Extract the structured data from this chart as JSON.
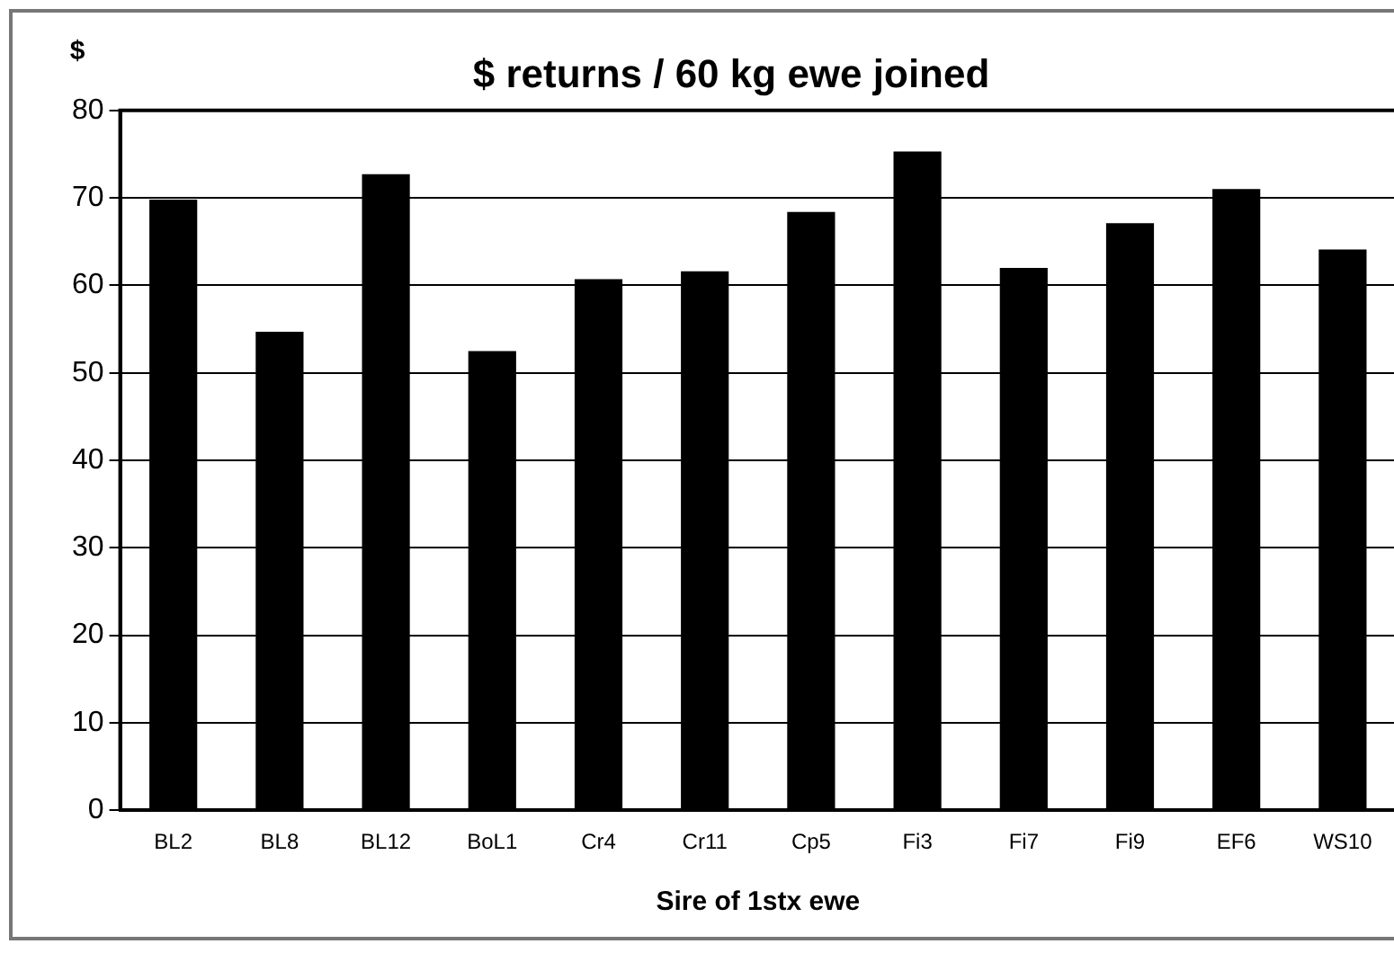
{
  "chart_data": {
    "type": "bar",
    "title": "$ returns / 60 kg ewe joined",
    "ylabel": "$",
    "xlabel": "Sire of 1stx ewe",
    "categories": [
      "BL2",
      "BL8",
      "BL12",
      "BoL1",
      "Cr4",
      "Cr11",
      "Cp5",
      "Fi3",
      "Fi7",
      "Fi9",
      "EF6",
      "WS10"
    ],
    "values": [
      69.8,
      54.7,
      72.7,
      52.5,
      60.7,
      61.6,
      68.4,
      75.3,
      62.0,
      67.1,
      71.0,
      64.1
    ],
    "color": "#000000",
    "ylim": [
      0,
      80
    ],
    "yticks": [
      0,
      10,
      20,
      30,
      40,
      50,
      60,
      70,
      80
    ],
    "grid": "y"
  }
}
